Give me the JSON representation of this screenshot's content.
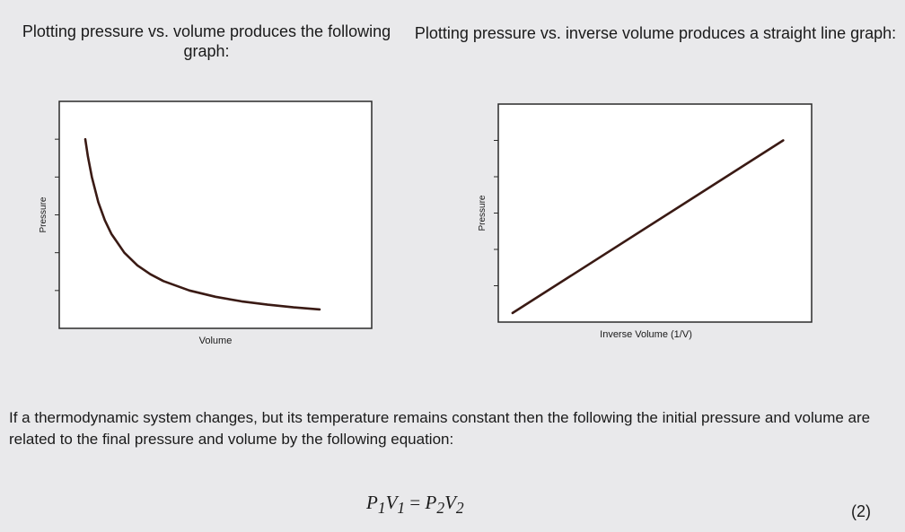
{
  "captions": {
    "left": "Plotting pressure vs. volume produces the following graph:",
    "right": "Plotting pressure vs. inverse volume produces a straight line graph:"
  },
  "chart_data": [
    {
      "type": "line",
      "title": "",
      "xlabel": "Volume",
      "ylabel": "Pressure",
      "x": [
        1.0,
        1.1,
        1.25,
        1.5,
        1.75,
        2.0,
        2.5,
        3.0,
        3.5,
        4.0,
        5.0,
        6.0,
        7.0,
        8.0,
        9.0,
        10.0
      ],
      "series": [
        {
          "values": [
            10.0,
            9.09,
            8.0,
            6.67,
            5.71,
            5.0,
            4.0,
            3.33,
            2.86,
            2.5,
            2.0,
            1.67,
            1.43,
            1.25,
            1.11,
            1.0
          ]
        }
      ],
      "xlim": [
        0,
        12
      ],
      "ylim": [
        0,
        12
      ],
      "grid": false
    },
    {
      "type": "line",
      "title": "",
      "xlabel": "Inverse Volume (1/V)",
      "ylabel": "Pressure",
      "x": [
        0.5,
        10.0
      ],
      "series": [
        {
          "values": [
            0.5,
            10.0
          ]
        }
      ],
      "xlim": [
        0,
        11
      ],
      "ylim": [
        0,
        12
      ],
      "grid": false
    }
  ],
  "body_text": "If a thermodynamic system changes, but its temperature remains constant then the following the initial pressure and volume are related to the final pressure and volume by the following equation:",
  "equation": {
    "p1": "P",
    "s1": "1",
    "v1": "V",
    "s2": "1",
    "eq": " = ",
    "p2": "P",
    "s3": "2",
    "v2": "V",
    "s4": "2"
  },
  "equation_number": "(2)"
}
